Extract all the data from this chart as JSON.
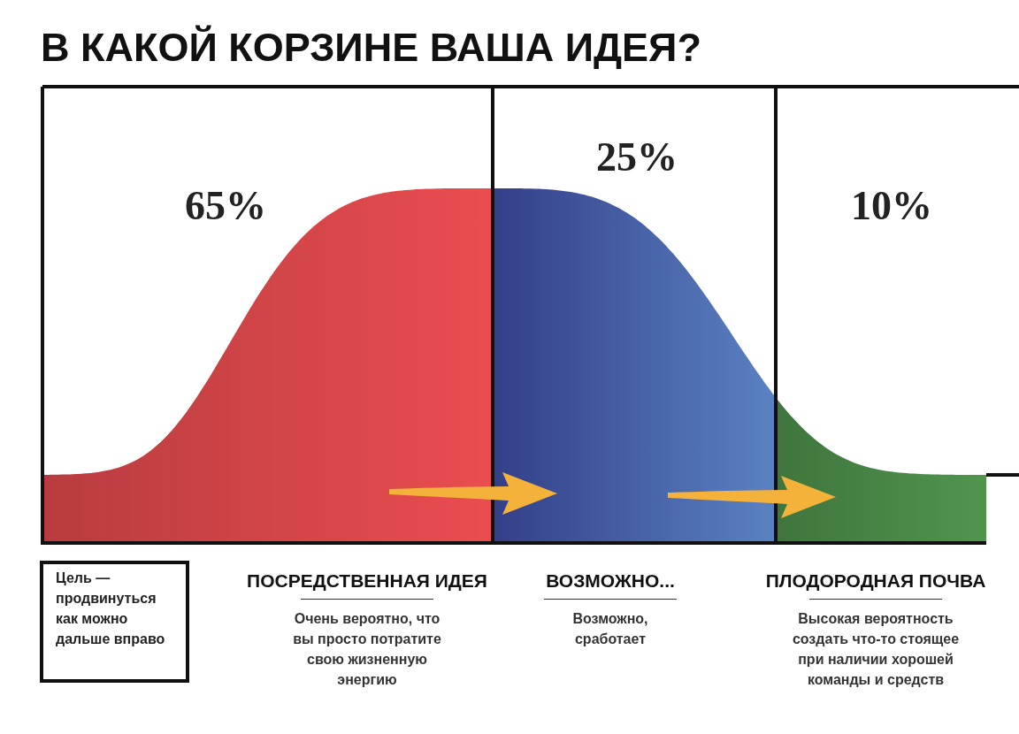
{
  "chart_data": {
    "type": "other",
    "title": "В КАКОЙ КОРЗИНЕ ВАША ИДЕЯ?",
    "categories": [
      "ПОСРЕДСТВЕННАЯ ИДЕЯ",
      "ВОЗМОЖНО...",
      "ПЛОДОРОДНАЯ ПОЧВА"
    ],
    "values": [
      65,
      25,
      10
    ],
    "value_labels": [
      "65%",
      "25%",
      "10%"
    ],
    "colors": [
      "#d9474a",
      "#3c4aa0",
      "#4a8a48"
    ],
    "annotations": [
      "Цель — продвинуться как можно дальше вправо",
      "Очень вероятно, что вы просто потратите свою жизненную энергию",
      "Возможно, сработает",
      "Высокая вероятность создать что-то стоящее при наличии хорошей команды и средств"
    ]
  }
}
